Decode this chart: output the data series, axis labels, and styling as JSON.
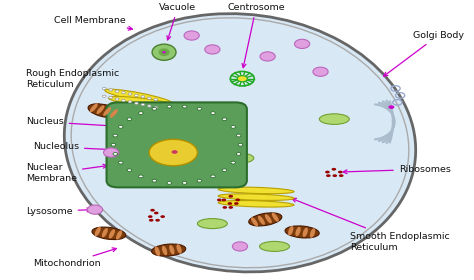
{
  "background_color": "#ffffff",
  "cell_fill": "#d8e8f5",
  "cell_border": "#888888",
  "arrow_color": "#cc00cc",
  "labels": {
    "Cell Membrane": [
      0.115,
      0.93,
      0.295,
      0.895,
      "left"
    ],
    "Vacuole": [
      0.385,
      0.975,
      0.36,
      0.845,
      "center"
    ],
    "Centrosome": [
      0.555,
      0.975,
      0.525,
      0.745,
      "center"
    ],
    "Golgi Body": [
      0.895,
      0.875,
      0.825,
      0.72,
      "left"
    ],
    "Rough Endoplasmic\nReticulum": [
      0.055,
      0.72,
      0.305,
      0.645,
      "left"
    ],
    "Nucleus": [
      0.055,
      0.565,
      0.3,
      0.545,
      "left"
    ],
    "Nucleolus": [
      0.07,
      0.475,
      0.375,
      0.455,
      "left"
    ],
    "Nuclear\nMembrane": [
      0.055,
      0.38,
      0.24,
      0.41,
      "left"
    ],
    "Ribosomes": [
      0.865,
      0.395,
      0.735,
      0.385,
      "left"
    ],
    "Lysosome": [
      0.055,
      0.245,
      0.205,
      0.25,
      "left"
    ],
    "Smooth Endoplasmic\nReticulum": [
      0.76,
      0.135,
      0.625,
      0.295,
      "left"
    ],
    "Mitochondrion": [
      0.145,
      0.055,
      0.26,
      0.115,
      "center"
    ]
  }
}
